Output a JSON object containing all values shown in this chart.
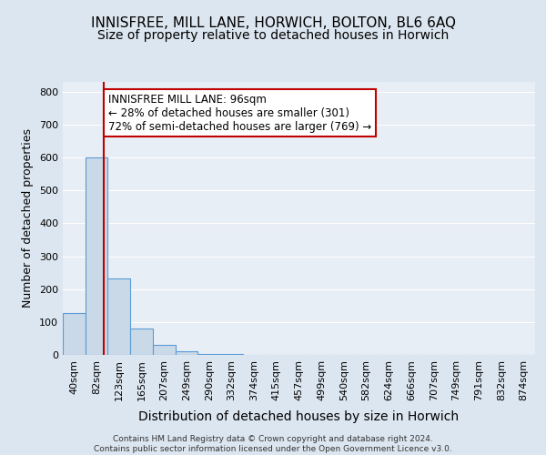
{
  "title1": "INNISFREE, MILL LANE, HORWICH, BOLTON, BL6 6AQ",
  "title2": "Size of property relative to detached houses in Horwich",
  "xlabel": "Distribution of detached houses by size in Horwich",
  "ylabel": "Number of detached properties",
  "footnote": "Contains HM Land Registry data © Crown copyright and database right 2024.\nContains public sector information licensed under the Open Government Licence v3.0.",
  "bins": [
    "40sqm",
    "82sqm",
    "123sqm",
    "165sqm",
    "207sqm",
    "249sqm",
    "290sqm",
    "332sqm",
    "374sqm",
    "415sqm",
    "457sqm",
    "499sqm",
    "540sqm",
    "582sqm",
    "624sqm",
    "666sqm",
    "707sqm",
    "749sqm",
    "791sqm",
    "832sqm",
    "874sqm"
  ],
  "values": [
    128,
    601,
    232,
    80,
    30,
    10,
    4,
    2,
    1,
    0,
    0,
    0,
    0,
    0,
    0,
    0,
    0,
    0,
    0,
    0,
    0
  ],
  "bar_color": "#c9d9e8",
  "bar_edge_color": "#5b9bd5",
  "property_line_x": 1.33,
  "property_line_color": "#c00000",
  "annotation_text": "INNISFREE MILL LANE: 96sqm\n← 28% of detached houses are smaller (301)\n72% of semi-detached houses are larger (769) →",
  "annotation_box_color": "#c00000",
  "annotation_box_fill": "white",
  "ylim": [
    0,
    830
  ],
  "yticks": [
    0,
    100,
    200,
    300,
    400,
    500,
    600,
    700,
    800
  ],
  "background_color": "#e8eef5",
  "plot_bg_color": "#dce6f0",
  "grid_color": "white",
  "title1_fontsize": 11,
  "title2_fontsize": 10,
  "xlabel_fontsize": 10,
  "ylabel_fontsize": 9,
  "tick_fontsize": 8,
  "annotation_fontsize": 8.5
}
